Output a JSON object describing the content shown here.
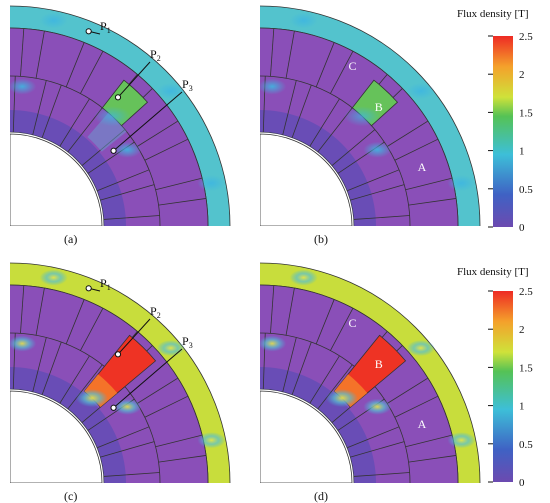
{
  "colorbar": {
    "title": "Flux density [T]",
    "ticks": [
      "2.5",
      "2",
      "1.5",
      "1",
      "0.5",
      "0"
    ],
    "stops": [
      "#ee2a24",
      "#f4a12b",
      "#cfe23a",
      "#55c255",
      "#3dbfd8",
      "#3f62c4",
      "#6c4ab0"
    ]
  },
  "panels": [
    {
      "caption": "(a)",
      "points": [
        {
          "main": "P",
          "sub": "1"
        },
        {
          "main": "P",
          "sub": "2"
        },
        {
          "main": "P",
          "sub": "3"
        }
      ],
      "regions": []
    },
    {
      "caption": "(b)",
      "points": [],
      "regions": [
        "C",
        "B",
        "A"
      ]
    },
    {
      "caption": "(c)",
      "points": [
        {
          "main": "P",
          "sub": "1"
        },
        {
          "main": "P",
          "sub": "2"
        },
        {
          "main": "P",
          "sub": "3"
        }
      ],
      "regions": []
    },
    {
      "caption": "(d)",
      "points": [],
      "regions": [
        "C",
        "B",
        "A"
      ]
    }
  ],
  "colors": {
    "magnet_bg": "#8a4fb8",
    "low_field": "#3b4fb0",
    "outline": "#2a2a2a"
  }
}
